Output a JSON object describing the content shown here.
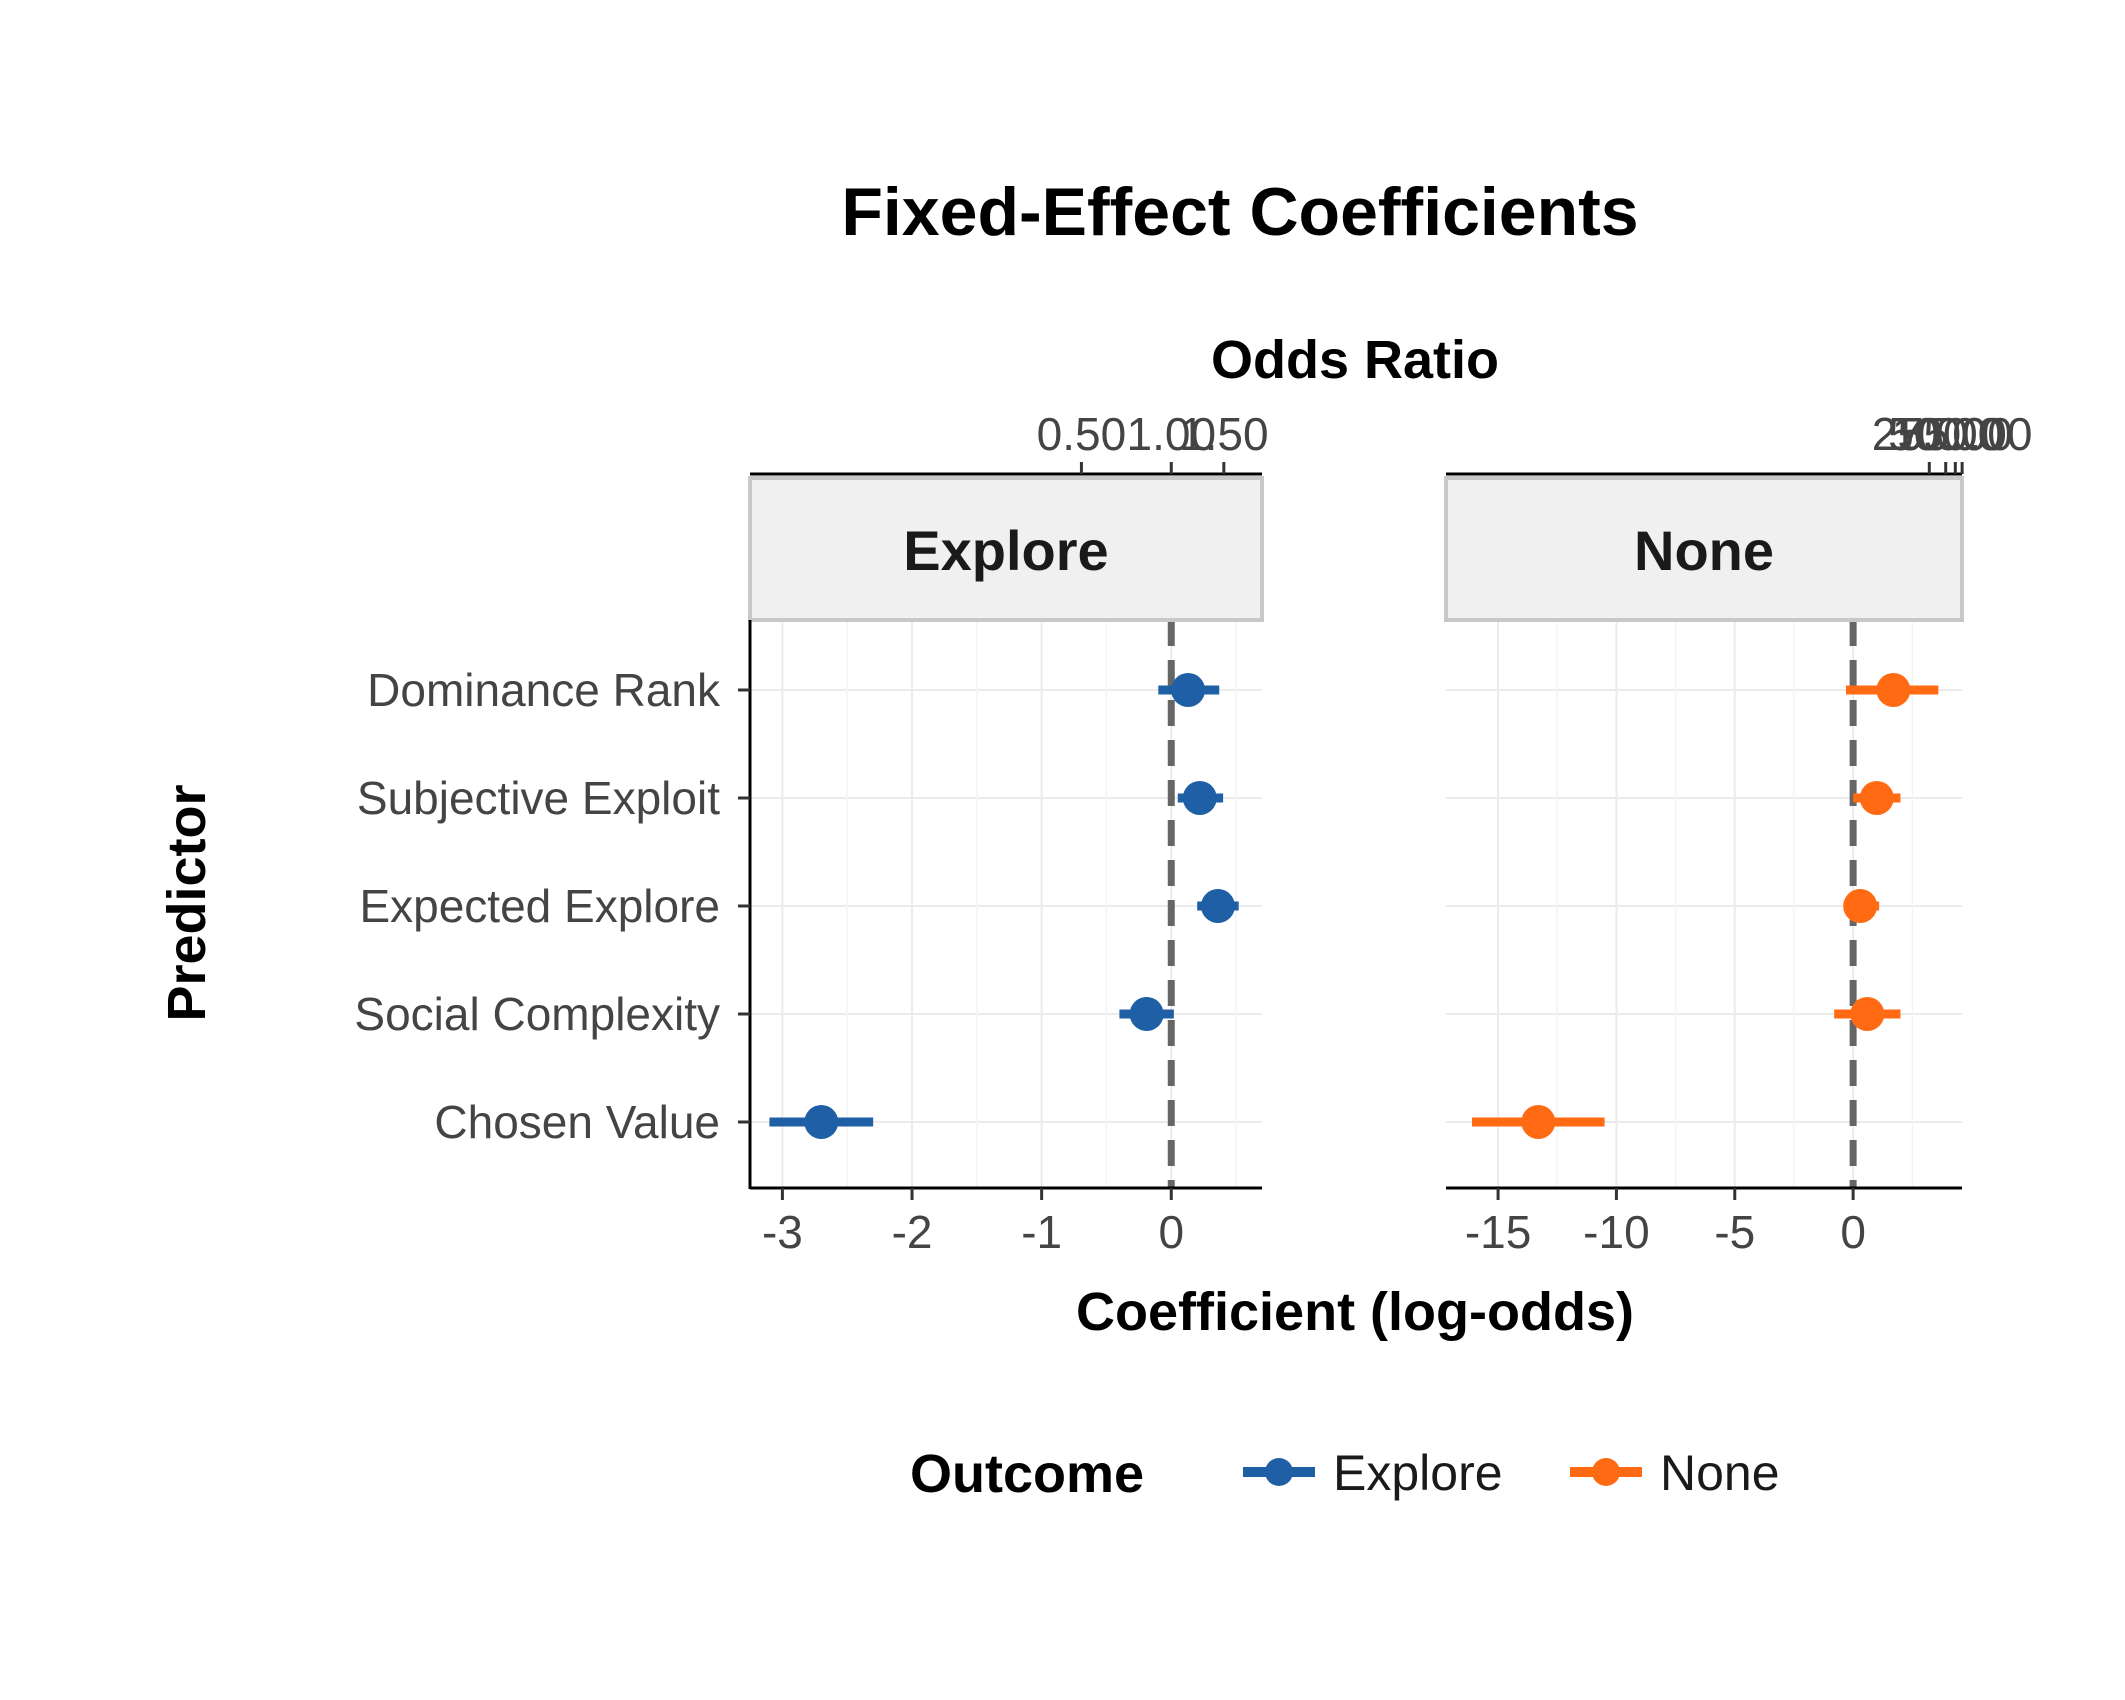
{
  "chart_data": {
    "type": "forest",
    "title": "Fixed-Effect Coefficients",
    "xlabel": "Coefficient (log-odds)",
    "ylabel": "Predictor",
    "secondary_xlabel": "Odds Ratio",
    "legend": {
      "title": "Outcome",
      "position": "bottom"
    },
    "grid": true,
    "reference_line": 0,
    "categories": [
      "Dominance Rank",
      "Subjective Exploit",
      "Expected Explore",
      "Social Complexity",
      "Chosen Value"
    ],
    "panels": [
      {
        "name": "Explore",
        "color": "#1f5fa6",
        "xlim": [
          -3.25,
          0.7
        ],
        "x_ticks": [
          "-3",
          "-2",
          "-1",
          "0"
        ],
        "x_tick_values": [
          -3,
          -2,
          -1,
          0
        ],
        "top_ticks": [
          "0.50",
          "1.00",
          "1.50"
        ],
        "top_tick_values": [
          0.5,
          1.0,
          1.5
        ],
        "estimates": [
          0.13,
          0.22,
          0.36,
          -0.19,
          -2.7
        ],
        "ci_low": [
          -0.1,
          0.05,
          0.2,
          -0.4,
          -3.1
        ],
        "ci_high": [
          0.37,
          0.4,
          0.52,
          0.02,
          -2.3
        ]
      },
      {
        "name": "None",
        "color": "#ff6a13",
        "xlim": [
          -17.2,
          4.6
        ],
        "x_ticks": [
          "-15",
          "-10",
          "-5",
          "0"
        ],
        "x_tick_values": [
          -15,
          -10,
          -5,
          0
        ],
        "top_ticks": [
          "25.00",
          "50.00",
          "75.00",
          "100.00"
        ],
        "top_tick_values": [
          25,
          50,
          75,
          100
        ],
        "estimates": [
          1.7,
          1.0,
          0.3,
          0.6,
          -13.3
        ],
        "ci_low": [
          -0.3,
          0.0,
          -0.4,
          -0.8,
          -16.1
        ],
        "ci_high": [
          3.6,
          2.0,
          1.1,
          2.0,
          -10.5
        ]
      }
    ]
  }
}
